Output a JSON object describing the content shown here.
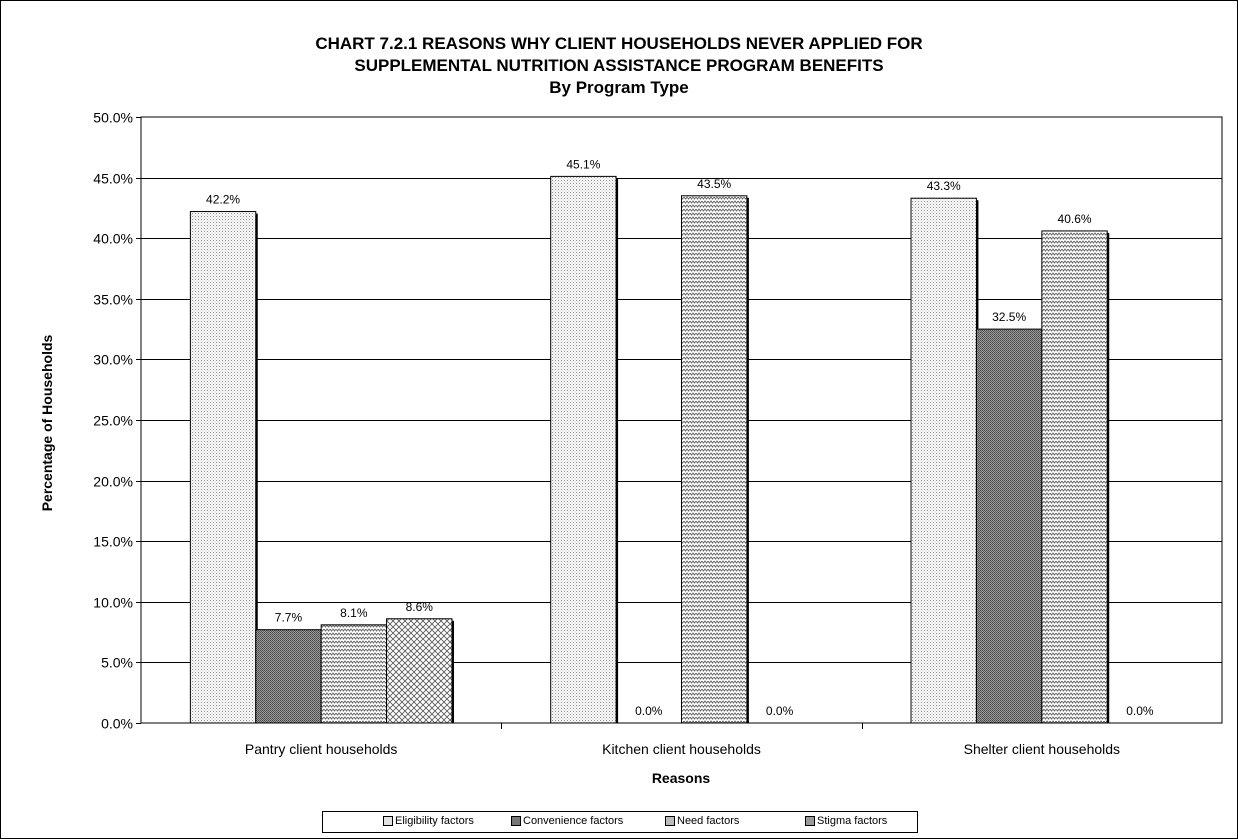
{
  "chart_data": {
    "type": "bar",
    "title_lines": [
      "CHART 7.2.1     REASONS WHY CLIENT HOUSEHOLDS NEVER APPLIED FOR",
      "SUPPLEMENTAL NUTRITION ASSISTANCE PROGRAM BENEFITS",
      "By Program Type"
    ],
    "xlabel": "Reasons",
    "ylabel": "Percentage of Households",
    "ylim": [
      0,
      50
    ],
    "yticks": [
      "0.0%",
      "5.0%",
      "10.0%",
      "15.0%",
      "20.0%",
      "25.0%",
      "30.0%",
      "35.0%",
      "40.0%",
      "45.0%",
      "50.0%"
    ],
    "categories": [
      "Pantry client households",
      "Kitchen client households",
      "Shelter client households"
    ],
    "series": [
      {
        "name": "Eligibility factors",
        "pattern": "dots",
        "values": [
          42.2,
          45.1,
          43.3
        ],
        "labels": [
          "42.2%",
          "45.1%",
          "43.3%"
        ]
      },
      {
        "name": "Convenience factors",
        "pattern": "dense",
        "values": [
          7.7,
          0.0,
          32.5
        ],
        "labels": [
          "7.7%",
          "0.0%",
          "32.5%"
        ]
      },
      {
        "name": "Need factors",
        "pattern": "wave",
        "values": [
          8.1,
          43.5,
          40.6
        ],
        "labels": [
          "8.1%",
          "43.5%",
          "40.6%"
        ]
      },
      {
        "name": "Stigma factors",
        "pattern": "check",
        "values": [
          8.6,
          0.0,
          0.0
        ],
        "labels": [
          "8.6%",
          "0.0%",
          "0.0%"
        ]
      }
    ],
    "grid": true,
    "legend_position": "bottom"
  }
}
